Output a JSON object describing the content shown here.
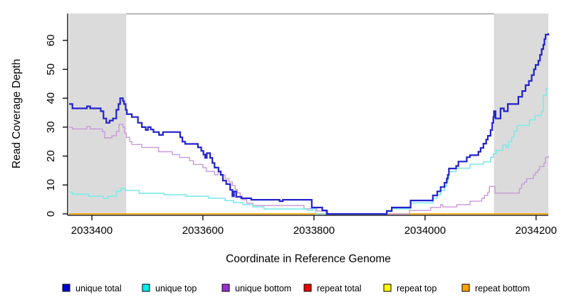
{
  "chart_data": {
    "type": "line",
    "subtype": "step",
    "title": "",
    "xlabel": "Coordinate in Reference Genome",
    "ylabel": "Read Coverage Depth",
    "xlim": [
      2033359,
      2034222
    ],
    "ylim": [
      0,
      69.3
    ],
    "x_ticks": [
      2033400,
      2033600,
      2033800,
      2034000,
      2034200
    ],
    "y_ticks": [
      0,
      10,
      20,
      30,
      40,
      50,
      60
    ],
    "grid": false,
    "legend_position": "bottom",
    "colors": {
      "shaded_region": "#dbdbdb",
      "top_border": "#8f8f8f",
      "axis": "#000000"
    },
    "shaded_regions": [
      {
        "x1": 2033359,
        "x2": 2033462
      },
      {
        "x1": 2034124,
        "x2": 2034222
      }
    ],
    "series": [
      {
        "name": "unique total",
        "line_color": "#2222cc",
        "legend_color": "#0000cd",
        "width": 2.2,
        "steps": [
          [
            2033359,
            38
          ],
          [
            2033365,
            36.5
          ],
          [
            2033391,
            37.2
          ],
          [
            2033397,
            36.5
          ],
          [
            2033416,
            35.5
          ],
          [
            2033421,
            33
          ],
          [
            2033426,
            31.5
          ],
          [
            2033432,
            32.3
          ],
          [
            2033438,
            33
          ],
          [
            2033444,
            36
          ],
          [
            2033448,
            38
          ],
          [
            2033451,
            40
          ],
          [
            2033456,
            39
          ],
          [
            2033458,
            38
          ],
          [
            2033461,
            36
          ],
          [
            2033463,
            34.5
          ],
          [
            2033472,
            33.5
          ],
          [
            2033483,
            31.5
          ],
          [
            2033490,
            30
          ],
          [
            2033497,
            29
          ],
          [
            2033501,
            30
          ],
          [
            2033506,
            29.2
          ],
          [
            2033511,
            28.3
          ],
          [
            2033521,
            27.3
          ],
          [
            2033528,
            28.3
          ],
          [
            2033559,
            26.5
          ],
          [
            2033563,
            25
          ],
          [
            2033568,
            24.2
          ],
          [
            2033591,
            23
          ],
          [
            2033597,
            21.8
          ],
          [
            2033601,
            20.5
          ],
          [
            2033604,
            19.4
          ],
          [
            2033607,
            21
          ],
          [
            2033613,
            19.4
          ],
          [
            2033617,
            17.6
          ],
          [
            2033621,
            16
          ],
          [
            2033628,
            14.7
          ],
          [
            2033632,
            13.5
          ],
          [
            2033636,
            11.5
          ],
          [
            2033642,
            10.3
          ],
          [
            2033649,
            8.3
          ],
          [
            2033653,
            6.1
          ],
          [
            2033656,
            7.8
          ],
          [
            2033660,
            5.9
          ],
          [
            2033669,
            5.4
          ],
          [
            2033687,
            4.9
          ],
          [
            2033738,
            4.4
          ],
          [
            2033744,
            4.9
          ],
          [
            2033796,
            2.2
          ],
          [
            2033815,
            1.2
          ],
          [
            2033823,
            0
          ],
          [
            2033931,
            1
          ],
          [
            2033940,
            2.2
          ],
          [
            2033974,
            4.65
          ],
          [
            2034014,
            6.4
          ],
          [
            2034022,
            7.8
          ],
          [
            2034028,
            9.3
          ],
          [
            2034035,
            10.8
          ],
          [
            2034039,
            12.2
          ],
          [
            2034041,
            13.5
          ],
          [
            2034043,
            15.7
          ],
          [
            2034056,
            16.6
          ],
          [
            2034060,
            18.1
          ],
          [
            2034075,
            19.6
          ],
          [
            2034081,
            20.3
          ],
          [
            2034096,
            21.5
          ],
          [
            2034100,
            22.8
          ],
          [
            2034105,
            24.3
          ],
          [
            2034110,
            25.7
          ],
          [
            2034113,
            27
          ],
          [
            2034118,
            29
          ],
          [
            2034121,
            31.5
          ],
          [
            2034123,
            33.5
          ],
          [
            2034124,
            35.5
          ],
          [
            2034127,
            33
          ],
          [
            2034136,
            36.5
          ],
          [
            2034142,
            35.5
          ],
          [
            2034149,
            38
          ],
          [
            2034168,
            40.5
          ],
          [
            2034175,
            42.5
          ],
          [
            2034181,
            44.5
          ],
          [
            2034187,
            46
          ],
          [
            2034192,
            48
          ],
          [
            2034196,
            50
          ],
          [
            2034199,
            51.5
          ],
          [
            2034204,
            53
          ],
          [
            2034207,
            55
          ],
          [
            2034210,
            57
          ],
          [
            2034213,
            58.5
          ],
          [
            2034215,
            60.5
          ],
          [
            2034217,
            62
          ],
          [
            2034222,
            62.5
          ]
        ]
      },
      {
        "name": "unique top",
        "line_color": "#7fe9e9",
        "legend_color": "#00eeee",
        "width": 1.6,
        "steps": [
          [
            2033359,
            7.5
          ],
          [
            2033365,
            6.8
          ],
          [
            2033394,
            6.1
          ],
          [
            2033421,
            5.4
          ],
          [
            2033429,
            6.1
          ],
          [
            2033444,
            7.8
          ],
          [
            2033452,
            8.8
          ],
          [
            2033460,
            8.1
          ],
          [
            2033485,
            7.1
          ],
          [
            2033530,
            6.6
          ],
          [
            2033570,
            6.1
          ],
          [
            2033610,
            5.4
          ],
          [
            2033640,
            4.6
          ],
          [
            2033655,
            3.9
          ],
          [
            2033672,
            3.2
          ],
          [
            2033690,
            2.4
          ],
          [
            2033710,
            1.7
          ],
          [
            2033788,
            1.2
          ],
          [
            2033797,
            1.7
          ],
          [
            2033803,
            0
          ],
          [
            2033931,
            0.8
          ],
          [
            2033940,
            1.8
          ],
          [
            2033974,
            3.8
          ],
          [
            2034014,
            5.4
          ],
          [
            2034022,
            6.6
          ],
          [
            2034028,
            8.1
          ],
          [
            2034035,
            9.6
          ],
          [
            2034039,
            11
          ],
          [
            2034041,
            12.3
          ],
          [
            2034043,
            14.6
          ],
          [
            2034056,
            15.8
          ],
          [
            2034081,
            17.2
          ],
          [
            2034105,
            18
          ],
          [
            2034118,
            19.6
          ],
          [
            2034123,
            20.8
          ],
          [
            2034128,
            22
          ],
          [
            2034140,
            23.8
          ],
          [
            2034146,
            23
          ],
          [
            2034150,
            25
          ],
          [
            2034156,
            26.5
          ],
          [
            2034160,
            28.7
          ],
          [
            2034166,
            30.6
          ],
          [
            2034188,
            32.5
          ],
          [
            2034198,
            34
          ],
          [
            2034210,
            35.5
          ],
          [
            2034213,
            41
          ],
          [
            2034218,
            43.4
          ]
        ]
      },
      {
        "name": "unique bottom",
        "line_color": "#c99ad9",
        "legend_color": "#9932cc",
        "width": 1.4,
        "steps": [
          [
            2033359,
            30
          ],
          [
            2033365,
            29.4
          ],
          [
            2033391,
            30.2
          ],
          [
            2033397,
            29.4
          ],
          [
            2033419,
            28.5
          ],
          [
            2033423,
            26.3
          ],
          [
            2033436,
            27
          ],
          [
            2033444,
            28.5
          ],
          [
            2033449,
            31
          ],
          [
            2033456,
            30
          ],
          [
            2033459,
            28
          ],
          [
            2033462,
            26.5
          ],
          [
            2033468,
            25
          ],
          [
            2033472,
            24
          ],
          [
            2033490,
            23
          ],
          [
            2033520,
            21.5
          ],
          [
            2033545,
            20.5
          ],
          [
            2033558,
            19.5
          ],
          [
            2033576,
            18.4
          ],
          [
            2033583,
            17.1
          ],
          [
            2033600,
            16
          ],
          [
            2033606,
            14.7
          ],
          [
            2033621,
            13.5
          ],
          [
            2033627,
            14.5
          ],
          [
            2033633,
            13.5
          ],
          [
            2033640,
            12.2
          ],
          [
            2033647,
            11
          ],
          [
            2033653,
            9.8
          ],
          [
            2033658,
            8.5
          ],
          [
            2033662,
            7.3
          ],
          [
            2033667,
            6.1
          ],
          [
            2033671,
            4.9
          ],
          [
            2033679,
            3.7
          ],
          [
            2033690,
            2.9
          ],
          [
            2033782,
            1.8
          ],
          [
            2033805,
            1
          ],
          [
            2033825,
            0
          ],
          [
            2033972,
            1.2
          ],
          [
            2034010,
            2.2
          ],
          [
            2034028,
            3.2
          ],
          [
            2034032,
            2.4
          ],
          [
            2034057,
            3.2
          ],
          [
            2034081,
            4.4
          ],
          [
            2034102,
            5.4
          ],
          [
            2034107,
            6.4
          ],
          [
            2034113,
            7.5
          ],
          [
            2034116,
            9.5
          ],
          [
            2034126,
            7.2
          ],
          [
            2034170,
            8.8
          ],
          [
            2034174,
            10.3
          ],
          [
            2034179,
            11
          ],
          [
            2034183,
            12.2
          ],
          [
            2034195,
            13.5
          ],
          [
            2034199,
            14.4
          ],
          [
            2034203,
            15.2
          ],
          [
            2034206,
            16.4
          ],
          [
            2034214,
            17.6
          ],
          [
            2034217,
            19.6
          ],
          [
            2034222,
            20
          ]
        ]
      },
      {
        "name": "repeat total",
        "line_color": "#e00000",
        "legend_color": "#ee0000",
        "width": 1.2,
        "steps": [
          [
            2033359,
            0
          ]
        ]
      },
      {
        "name": "repeat top",
        "line_color": "#ffff00",
        "legend_color": "#ffff00",
        "width": 1.2,
        "steps": [
          [
            2033359,
            0
          ]
        ]
      },
      {
        "name": "repeat bottom",
        "line_color": "#ffa500",
        "legend_color": "#ffa500",
        "width": 1.6,
        "steps": [
          [
            2033359,
            0
          ]
        ]
      }
    ]
  }
}
